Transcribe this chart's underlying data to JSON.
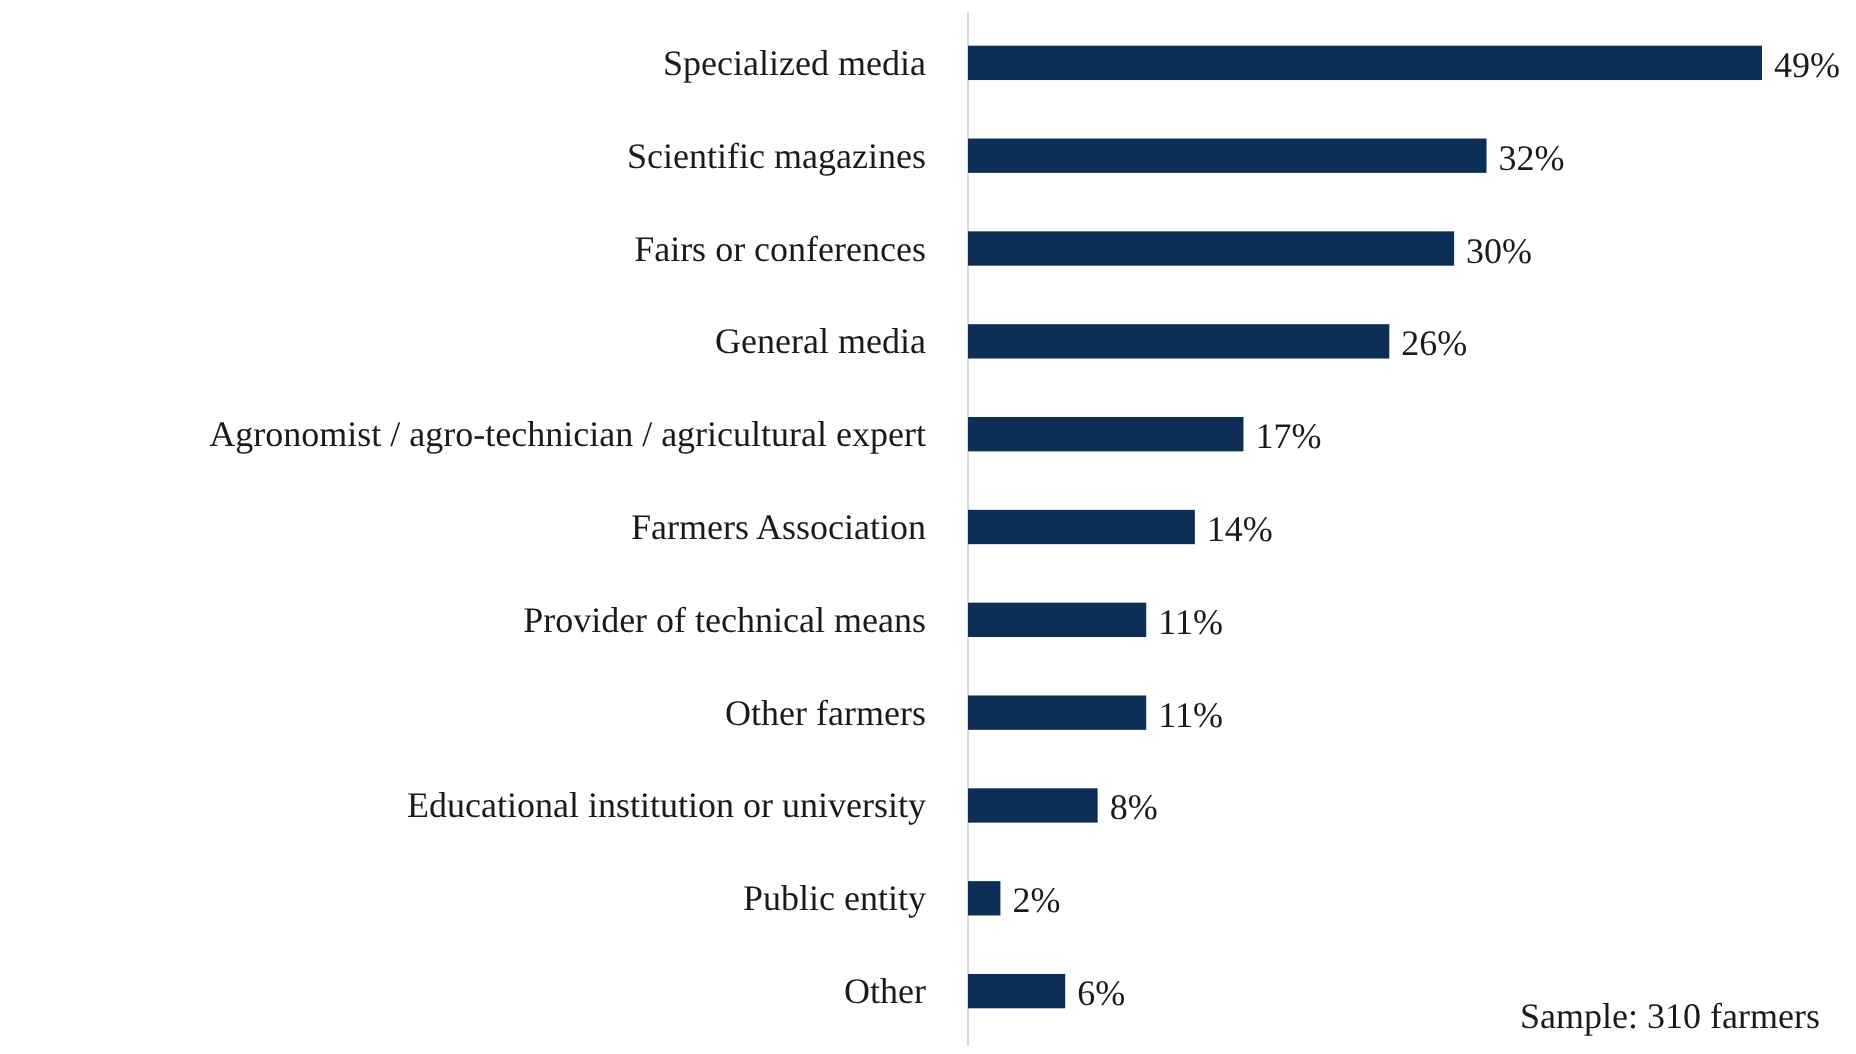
{
  "chart_data": {
    "type": "bar",
    "orientation": "horizontal",
    "categories": [
      "Specialized media",
      "Scientific magazines",
      "Fairs or conferences",
      "General media",
      "Agronomist / agro-technician / agricultural expert",
      "Farmers Association",
      "Provider of technical means",
      "Other farmers",
      "Educational institution or university",
      "Public entity",
      "Other"
    ],
    "values": [
      49,
      32,
      30,
      26,
      17,
      14,
      11,
      11,
      8,
      2,
      6
    ],
    "value_labels": [
      "49%",
      "32%",
      "30%",
      "26%",
      "17%",
      "14%",
      "11%",
      "11%",
      "8%",
      "2%",
      "6%"
    ],
    "color": "#0d2f57",
    "annotations": [
      "Sample: 310 farmers"
    ]
  }
}
